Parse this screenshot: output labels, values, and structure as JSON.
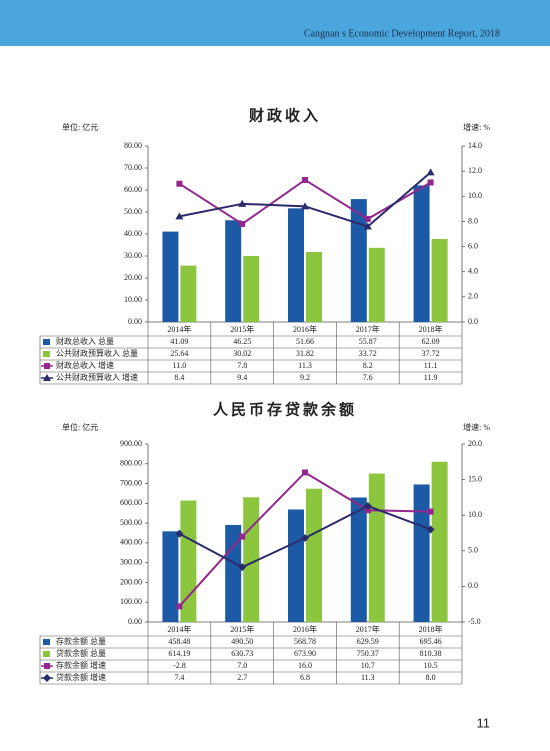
{
  "header": {
    "text": "Cangnan s Economic Development Report, 2018"
  },
  "page_number": "11",
  "chart_data": [
    {
      "type": "bar",
      "title": "财政收入",
      "unit_left": "单位: 亿元",
      "unit_right": "增速: %",
      "categories": [
        "2014年",
        "2015年",
        "2016年",
        "2017年",
        "2018年"
      ],
      "series": [
        {
          "name": "财政总收入 总量",
          "type": "bar",
          "axis": "y",
          "color": "#1d5aa6",
          "values": [
            41.09,
            46.25,
            51.66,
            55.87,
            62.09
          ],
          "value_labels": [
            "41.09",
            "46.25",
            "51.66",
            "55.87",
            "62.09"
          ]
        },
        {
          "name": "公共财政预算收入 总量",
          "type": "bar",
          "axis": "y",
          "color": "#8cc63f",
          "values": [
            25.64,
            30.02,
            31.82,
            33.72,
            37.72
          ],
          "value_labels": [
            "25.64",
            "30.02",
            "31.82",
            "33.72",
            "37.72"
          ]
        },
        {
          "name": "财政总收入 增速",
          "type": "line",
          "axis": "y2",
          "marker": "square",
          "color": "#93278f",
          "values": [
            11.0,
            7.8,
            11.3,
            8.2,
            11.1
          ],
          "value_labels": [
            "11.0",
            "7.8",
            "11.3",
            "8.2",
            "11.1"
          ]
        },
        {
          "name": "公共财政预算收入 增速",
          "type": "line",
          "axis": "y2",
          "marker": "triangle",
          "color": "#2b2a6b",
          "values": [
            8.4,
            9.4,
            9.2,
            7.6,
            11.9
          ],
          "value_labels": [
            "8.4",
            "9.4",
            "9.2",
            "7.6",
            "11.9"
          ]
        }
      ],
      "ylim": [
        0,
        80
      ],
      "yticks": [
        {
          "value": 0,
          "label": "0.00"
        },
        {
          "value": 10,
          "label": "10.00"
        },
        {
          "value": 20,
          "label": "20.00"
        },
        {
          "value": 30,
          "label": "30.00"
        },
        {
          "value": 40,
          "label": "40.00"
        },
        {
          "value": 50,
          "label": "50.00"
        },
        {
          "value": 60,
          "label": "60.00"
        },
        {
          "value": 70,
          "label": "70.00"
        },
        {
          "value": 80,
          "label": "80.00"
        }
      ],
      "y2lim": [
        0,
        14
      ],
      "y2ticks": [
        {
          "value": 0,
          "label": "0.0"
        },
        {
          "value": 2,
          "label": "2.0"
        },
        {
          "value": 4,
          "label": "4.0"
        },
        {
          "value": 6,
          "label": "6.0"
        },
        {
          "value": 8,
          "label": "8.0"
        },
        {
          "value": 10,
          "label": "10.0"
        },
        {
          "value": 12,
          "label": "12.0"
        },
        {
          "value": 14,
          "label": "14.0"
        }
      ]
    },
    {
      "type": "bar",
      "title": "人民币存贷款余额",
      "unit_left": "单位: 亿元",
      "unit_right": "增速: %",
      "categories": [
        "2014年",
        "2015年",
        "2016年",
        "2017年",
        "2018年"
      ],
      "series": [
        {
          "name": "存款余额 总量",
          "type": "bar",
          "axis": "y",
          "color": "#1d5aa6",
          "values": [
            458.48,
            490.5,
            568.78,
            629.59,
            695.46
          ],
          "value_labels": [
            "458.48",
            "490.50",
            "568.78",
            "629.59",
            "695.46"
          ]
        },
        {
          "name": "贷款余额 总量",
          "type": "bar",
          "axis": "y",
          "color": "#8cc63f",
          "values": [
            614.19,
            630.73,
            673.9,
            750.37,
            810.38
          ],
          "value_labels": [
            "614.19",
            "630.73",
            "673.90",
            "750.37",
            "810.38"
          ]
        },
        {
          "name": "存款余额 增速",
          "type": "line",
          "axis": "y2",
          "marker": "square",
          "color": "#93278f",
          "values": [
            -2.8,
            7.0,
            16.0,
            10.7,
            10.5
          ],
          "value_labels": [
            "-2.8",
            "7.0",
            "16.0",
            "10.7",
            "10.5"
          ]
        },
        {
          "name": "贷款余额 增速",
          "type": "line",
          "axis": "y2",
          "marker": "diamond",
          "color": "#2b2a6b",
          "values": [
            7.4,
            2.7,
            6.8,
            11.3,
            8.0
          ],
          "value_labels": [
            "7.4",
            "2.7",
            "6.8",
            "11.3",
            "8.0"
          ]
        }
      ],
      "ylim": [
        0,
        900
      ],
      "yticks": [
        {
          "value": 0,
          "label": "0.00"
        },
        {
          "value": 100,
          "label": "100.00"
        },
        {
          "value": 200,
          "label": "200.00"
        },
        {
          "value": 300,
          "label": "300.00"
        },
        {
          "value": 400,
          "label": "400.00"
        },
        {
          "value": 500,
          "label": "500.00"
        },
        {
          "value": 600,
          "label": "600.00"
        },
        {
          "value": 700,
          "label": "700.00"
        },
        {
          "value": 800,
          "label": "800.00"
        },
        {
          "value": 900,
          "label": "900.00"
        }
      ],
      "y2lim": [
        -5,
        20
      ],
      "y2ticks": [
        {
          "value": -5,
          "label": "-5.0"
        },
        {
          "value": 0,
          "label": "0.0"
        },
        {
          "value": 5,
          "label": "5.0"
        },
        {
          "value": 10,
          "label": "10.0"
        },
        {
          "value": 15,
          "label": "15.0"
        },
        {
          "value": 20,
          "label": "20.0"
        }
      ]
    }
  ]
}
